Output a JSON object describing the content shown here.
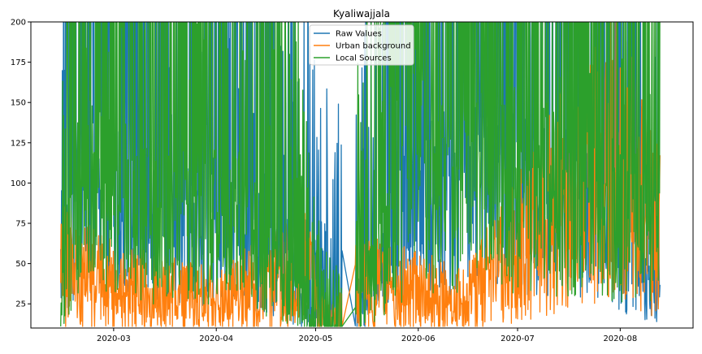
{
  "chart_data": {
    "type": "line",
    "title": "Kyaliwajjala",
    "xlabel": "",
    "ylabel": "",
    "x_range": [
      "2020-02-05",
      "2020-08-23"
    ],
    "ylim": [
      10,
      200
    ],
    "x_ticks": [
      "2020-03-01",
      "2020-04-01",
      "2020-05-01",
      "2020-06-01",
      "2020-07-01",
      "2020-08-01"
    ],
    "x_tick_labels": [
      "2020-03",
      "2020-04",
      "2020-05",
      "2020-06",
      "2020-07",
      "2020-08"
    ],
    "y_ticks": [
      25,
      50,
      75,
      100,
      125,
      150,
      175,
      200
    ],
    "grid": false,
    "legend_position": "top-center",
    "data_start": "2020-02-14",
    "data_end": "2020-08-13",
    "gap": [
      "2020-05-09",
      "2020-05-13"
    ],
    "series": [
      {
        "name": "Raw Values",
        "color": "#1f77b4",
        "points": [
          [
            "2020-02-14",
            90
          ],
          [
            "2020-02-20",
            200
          ],
          [
            "2020-03-05",
            175
          ],
          [
            "2020-03-25",
            150
          ],
          [
            "2020-04-15",
            125
          ],
          [
            "2020-05-01",
            45
          ],
          [
            "2020-05-09",
            40
          ],
          [
            "2020-05-13",
            35
          ],
          [
            "2020-06-01",
            200
          ],
          [
            "2020-07-01",
            200
          ],
          [
            "2020-07-25",
            175
          ],
          [
            "2020-08-13",
            50
          ]
        ]
      },
      {
        "name": "Urban background",
        "color": "#ff7f0e",
        "points": [
          [
            "2020-02-14",
            55
          ],
          [
            "2020-03-01",
            40
          ],
          [
            "2020-04-01",
            30
          ],
          [
            "2020-04-30",
            55
          ],
          [
            "2020-05-02",
            20
          ],
          [
            "2020-05-09",
            20
          ],
          [
            "2020-05-13",
            45
          ],
          [
            "2020-06-15",
            30
          ],
          [
            "2020-07-15",
            100
          ],
          [
            "2020-07-30",
            140
          ],
          [
            "2020-08-13",
            75
          ]
        ]
      },
      {
        "name": "Local Sources",
        "color": "#2ca02c",
        "points": [
          [
            "2020-02-14",
            40
          ],
          [
            "2020-02-20",
            200
          ],
          [
            "2020-03-10",
            160
          ],
          [
            "2020-04-10",
            150
          ],
          [
            "2020-05-01",
            20
          ],
          [
            "2020-05-09",
            10
          ],
          [
            "2020-05-13",
            40
          ],
          [
            "2020-06-01",
            200
          ],
          [
            "2020-07-01",
            200
          ],
          [
            "2020-08-13",
            150
          ]
        ]
      }
    ]
  }
}
